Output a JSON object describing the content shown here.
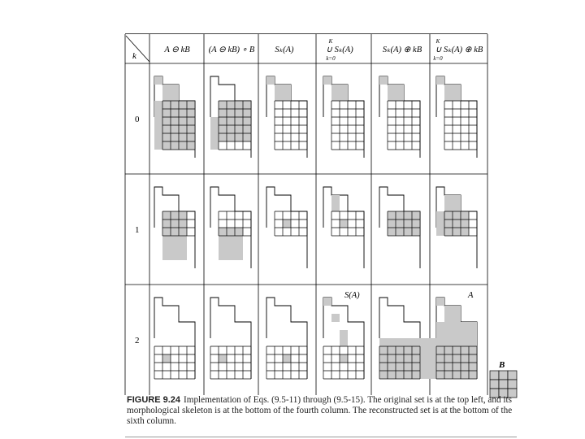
{
  "figure": {
    "corner_k": "k",
    "headers": [
      "A ⊖ kB",
      "(A ⊖ kB) ∘ B",
      "Sₖ(A)",
      "∪ Sₖ(A)",
      "Sₖ(A) ⊕ kB",
      "∪ Sₖ(A) ⊕ kB"
    ],
    "union_top": "K",
    "union_bottom": "k=0",
    "row_labels": [
      "0",
      "1",
      "2"
    ],
    "annotation_skeleton": "S(A)",
    "annotation_reconstructed": "A",
    "structuring_element_label": "B"
  },
  "caption": {
    "label": "FIGURE 9.24",
    "text": "Implementation of Eqs. (9.5-11) through (9.5-15). The original set is at the top left, and its morphological skeleton is at the bottom of the fourth column. The reconstructed set is at the bottom of the sixth column."
  },
  "colors": {
    "fill": "#c9c9c9",
    "line": "#000000",
    "background": "#ffffff"
  }
}
